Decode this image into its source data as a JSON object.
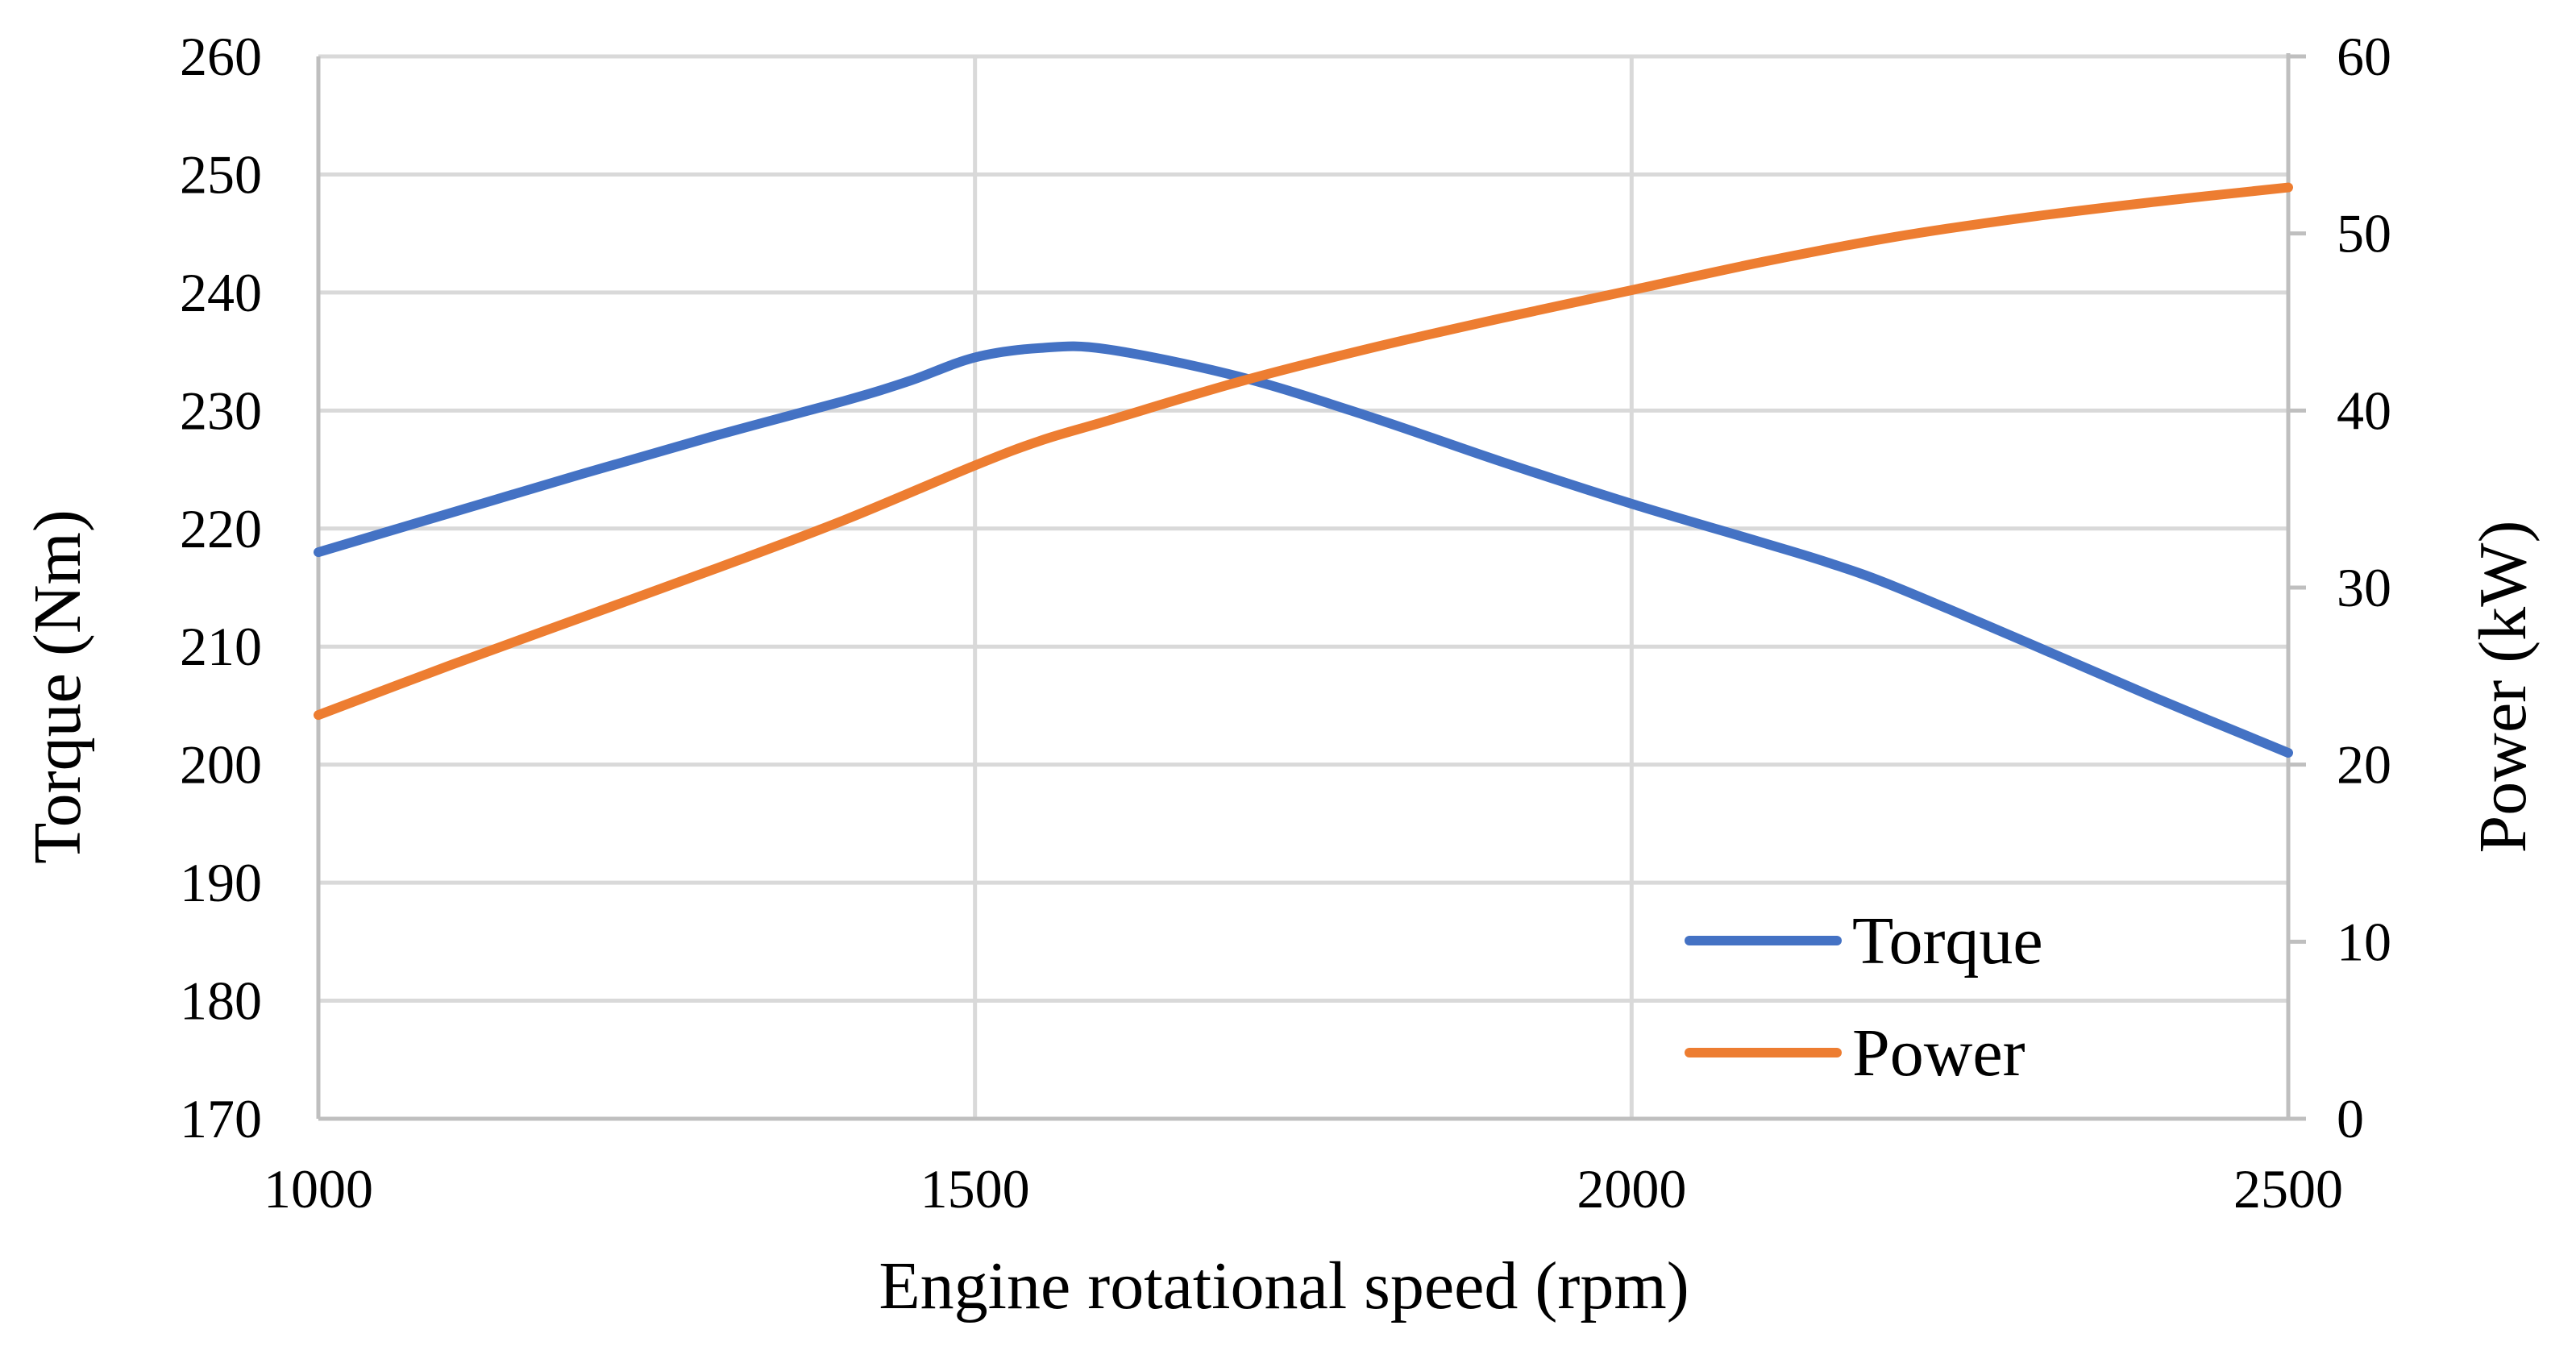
{
  "chart_data": {
    "type": "line",
    "title": "",
    "xlabel": "Engine rotational speed (rpm)",
    "ylabel": "Torque (Nm)",
    "y2label": "Power (kW)",
    "xlim": [
      1000,
      2500
    ],
    "ylim": [
      170,
      260
    ],
    "y2lim": [
      0,
      60
    ],
    "xticks": [
      "1000",
      "1500",
      "2000",
      "2500"
    ],
    "xtick_values": [
      1000,
      1500,
      2000,
      2500
    ],
    "yticks": [
      "170",
      "180",
      "190",
      "200",
      "210",
      "220",
      "230",
      "240",
      "250",
      "260"
    ],
    "ytick_values": [
      170,
      180,
      190,
      200,
      210,
      220,
      230,
      240,
      250,
      260
    ],
    "y2ticks": [
      "0",
      "10",
      "20",
      "30",
      "40",
      "50",
      "60"
    ],
    "y2tick_values": [
      0,
      10,
      20,
      30,
      40,
      50,
      60
    ],
    "grid": true,
    "legend_position": "bottom-right",
    "series": [
      {
        "name": "Torque",
        "axis": "left",
        "color": "#4472C4",
        "x": [
          1000,
          1100,
          1200,
          1300,
          1400,
          1450,
          1500,
          1550,
          1600,
          1700,
          1800,
          1900,
          2000,
          2100,
          2150,
          2200,
          2300,
          2400,
          2500
        ],
        "values": [
          218,
          221.3,
          224.6,
          227.8,
          230.8,
          232.5,
          234.5,
          235.3,
          235.2,
          232.9,
          229.5,
          225.7,
          222.1,
          218.8,
          217.1,
          215.1,
          210.4,
          205.6,
          201
        ]
      },
      {
        "name": "Power",
        "axis": "right",
        "color": "#ED7D31",
        "x": [
          1000,
          1100,
          1200,
          1300,
          1400,
          1500,
          1550,
          1600,
          1700,
          1800,
          1900,
          2000,
          2100,
          2200,
          2300,
          2400,
          2500
        ],
        "values": [
          22.8,
          25.6,
          28.3,
          31,
          33.8,
          36.9,
          38.3,
          39.4,
          41.6,
          43.5,
          45.2,
          46.8,
          48.4,
          49.8,
          50.9,
          51.8,
          52.6
        ]
      }
    ]
  }
}
